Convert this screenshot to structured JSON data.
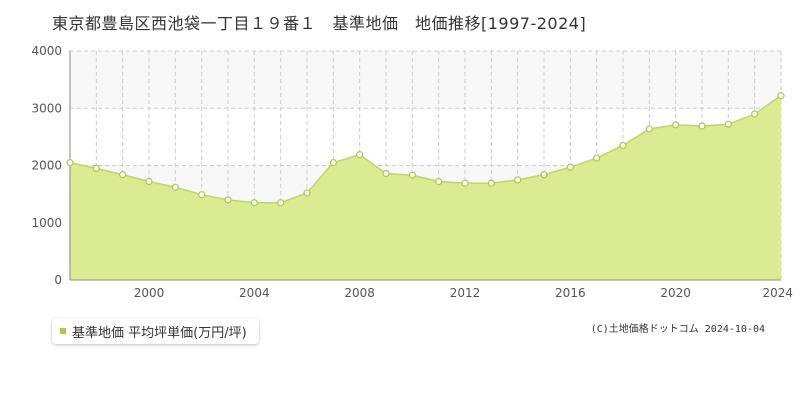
{
  "title": "東京都豊島区西池袋一丁目１９番１　基準地価　地価推移[1997-2024]",
  "legend_label": "基準地価 平均坪単価(万円/坪)",
  "credit": "(C)土地価格ドットコム 2024-10-04",
  "colors": {
    "fill": "#dbeb91",
    "line": "#bcd85f",
    "marker_fill": "#ffffff",
    "marker_stroke": "#a9cc45",
    "legend_marker": "#a9cc45",
    "grid": "#cccccc",
    "band": "#f8f8f8"
  },
  "chart_data": {
    "type": "area",
    "x": [
      1997,
      1998,
      1999,
      2000,
      2001,
      2002,
      2003,
      2004,
      2005,
      2006,
      2007,
      2008,
      2009,
      2010,
      2011,
      2012,
      2013,
      2014,
      2015,
      2016,
      2017,
      2018,
      2019,
      2020,
      2021,
      2022,
      2023,
      2024
    ],
    "series": [
      {
        "name": "基準地価 平均坪単価(万円/坪)",
        "values": [
          2050,
          1950,
          1840,
          1720,
          1620,
          1490,
          1400,
          1350,
          1350,
          1520,
          2050,
          2190,
          1860,
          1830,
          1720,
          1690,
          1690,
          1750,
          1840,
          1970,
          2130,
          2350,
          2640,
          2710,
          2690,
          2720,
          2900,
          3220
        ]
      }
    ],
    "xlim": [
      1997,
      2024
    ],
    "ylim": [
      0,
      4000
    ],
    "x_ticks": [
      2000,
      2004,
      2008,
      2012,
      2016,
      2020,
      2024
    ],
    "y_ticks": [
      0,
      1000,
      2000,
      3000,
      4000
    ],
    "grid": true
  }
}
